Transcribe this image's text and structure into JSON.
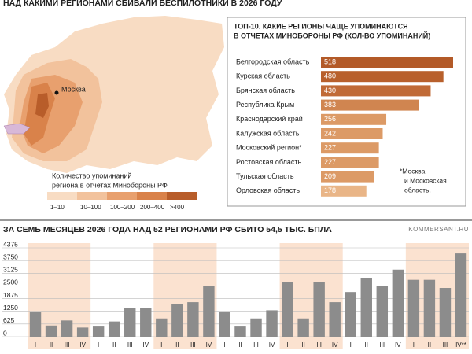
{
  "header": {
    "title": "НАД КАКИМИ РЕГИОНАМИ СБИВАЛИ БЕСПИЛОТНИКИ В 2026 ГОДУ"
  },
  "map": {
    "city": "Москва",
    "legend_title": [
      "Количество упоминаний",
      "региона в отчетах Минобороны РФ"
    ],
    "legend": [
      {
        "label": "1–10",
        "color": "#f8dcc3"
      },
      {
        "label": "10–100",
        "color": "#f2c29c"
      },
      {
        "label": "100–200",
        "color": "#e8a06e"
      },
      {
        "label": "200–400",
        "color": "#d9824a"
      },
      {
        "label": ">400",
        "color": "#b85d2a"
      }
    ]
  },
  "chart_data": [
    {
      "type": "hbar",
      "title": [
        "ТОП-10. КАКИЕ РЕГИОНЫ ЧАЩЕ УПОМИНАЮТСЯ",
        "В ОТЧЕТАХ МИНОБОРОНЫ РФ (КОЛ-ВО УПОМИНАНИЙ)"
      ],
      "categories": [
        "Белгородская область",
        "Курская область",
        "Брянская область",
        "Республика Крым",
        "Краснодарский край",
        "Калужская область",
        "Московский регион*",
        "Ростовская область",
        "Тульская область",
        "Орловская область"
      ],
      "values": [
        518,
        480,
        430,
        383,
        256,
        242,
        227,
        227,
        209,
        178
      ],
      "colors": [
        "#b35a28",
        "#b8602c",
        "#c06a36",
        "#d08550",
        "#dc9a66",
        "#dc9a66",
        "#dc9a66",
        "#dc9a66",
        "#dc9a66",
        "#e9b587"
      ],
      "note": [
        "*Москва",
        "и Московская",
        "область."
      ]
    },
    {
      "type": "bar",
      "title": [
        "ЗА СЕМЬ МЕСЯЦЕВ 2026 ГОДА НАД ",
        "52 РЕГИОНАМИ",
        " РФ СБИТО ",
        "54,5 ТЫС.",
        " БПЛА"
      ],
      "source": "KOMMERSANT.RU",
      "categories": [
        "I",
        "II",
        "III",
        "IV",
        "I",
        "II",
        "III",
        "IV",
        "I",
        "II",
        "III",
        "IV",
        "I",
        "II",
        "III",
        "IV",
        "I",
        "II",
        "III",
        "IV",
        "I",
        "II",
        "III",
        "IV",
        "I",
        "II",
        "III",
        "IV**"
      ],
      "values": [
        1200,
        550,
        800,
        450,
        500,
        750,
        1400,
        1400,
        900,
        1600,
        1700,
        2500,
        1200,
        500,
        900,
        1300,
        2700,
        900,
        2700,
        1700,
        2200,
        2900,
        2500,
        3300,
        2800,
        2800,
        2400,
        4100
      ],
      "color": "#8c8c8c",
      "ylim": [
        0,
        4375
      ],
      "yticks": [
        0,
        625,
        1250,
        1875,
        2500,
        3125,
        3750,
        4375
      ],
      "grid": true
    }
  ]
}
